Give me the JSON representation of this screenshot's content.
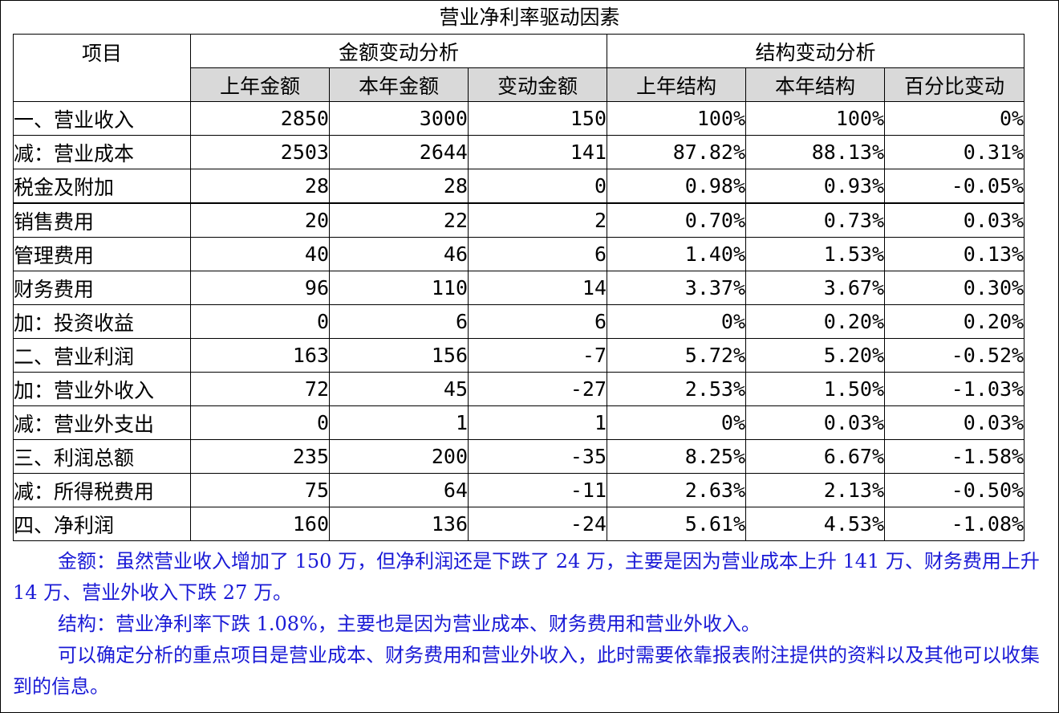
{
  "title": "营业净利率驱动因素",
  "header": {
    "item": "项目",
    "group_amount": "金额变动分析",
    "group_structure": "结构变动分析",
    "columns": [
      "上年金额",
      "本年金额",
      "变动金额",
      "上年结构",
      "本年结构",
      "百分比变动"
    ]
  },
  "rows": [
    {
      "label": "一、营业收入",
      "cells": [
        "2850",
        "3000",
        "150",
        "100%",
        "100%",
        "0%"
      ]
    },
    {
      "label": "减：营业成本",
      "cells": [
        "2503",
        "2644",
        "141",
        "87.82%",
        "88.13%",
        "0.31%"
      ]
    },
    {
      "label": "税金及附加",
      "cells": [
        "28",
        "28",
        "0",
        "0.98%",
        "0.93%",
        "-0.05%"
      ]
    },
    {
      "label": "销售费用",
      "cells": [
        "20",
        "22",
        "2",
        "0.70%",
        "0.73%",
        "0.03%"
      ]
    },
    {
      "label": "管理费用",
      "cells": [
        "40",
        "46",
        "6",
        "1.40%",
        "1.53%",
        "0.13%"
      ]
    },
    {
      "label": "财务费用",
      "cells": [
        "96",
        "110",
        "14",
        "3.37%",
        "3.67%",
        "0.30%"
      ]
    },
    {
      "label": "加：投资收益",
      "cells": [
        "0",
        "6",
        "6",
        "0%",
        "0.20%",
        "0.20%"
      ]
    },
    {
      "label": "二、营业利润",
      "cells": [
        "163",
        "156",
        "-7",
        "5.72%",
        "5.20%",
        "-0.52%"
      ]
    },
    {
      "label": "加：营业外收入",
      "cells": [
        "72",
        "45",
        "-27",
        "2.53%",
        "1.50%",
        "-1.03%"
      ]
    },
    {
      "label": "减：营业外支出",
      "cells": [
        "0",
        "1",
        "1",
        "0%",
        "0.03%",
        "0.03%"
      ]
    },
    {
      "label": "三、利润总额",
      "cells": [
        "235",
        "200",
        "-35",
        "8.25%",
        "6.67%",
        "-1.58%"
      ]
    },
    {
      "label": "减：所得税费用",
      "cells": [
        "75",
        "64",
        "-11",
        "2.63%",
        "2.13%",
        "-0.50%"
      ]
    },
    {
      "label": "四、净利润",
      "cells": [
        "160",
        "136",
        "-24",
        "5.61%",
        "4.53%",
        "-1.08%"
      ]
    }
  ],
  "notes": [
    "金额：虽然营业收入增加了 150 万，但净利润还是下跌了 24 万，主要是因为营业成本上升 141 万、财务费用上升 14 万、营业外收入下跌 27 万。",
    "结构：营业净利率下跌 1.08%，主要也是因为营业成本、财务费用和营业外收入。",
    "可以确定分析的重点项目是营业成本、财务费用和营业外收入，此时需要依靠报表附注提供的资料以及其他可以收集到的信息。"
  ],
  "colors": {
    "note_text": "#1a1ad6",
    "header_fill": "#d9d9d9"
  }
}
